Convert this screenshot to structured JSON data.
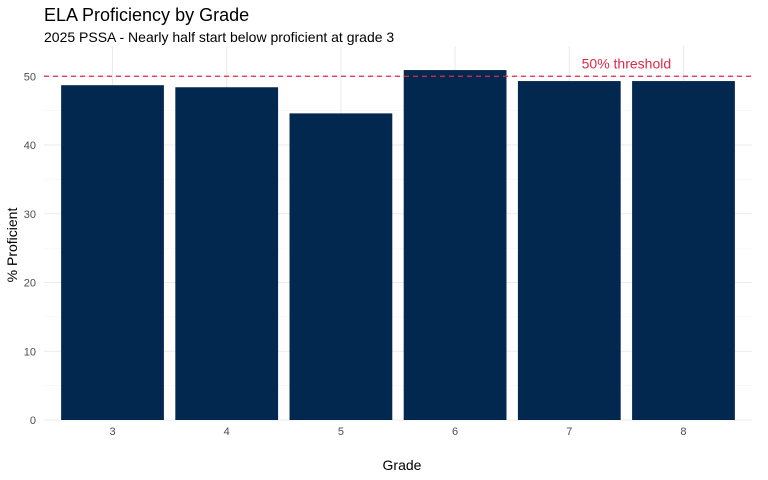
{
  "chart_data": {
    "type": "bar",
    "title": "ELA Proficiency by Grade",
    "subtitle": "2025 PSSA - Nearly half start below proficient at grade 3",
    "xlabel": "Grade",
    "ylabel": "% Proficient",
    "categories": [
      "3",
      "4",
      "5",
      "6",
      "7",
      "8"
    ],
    "values": [
      48.7,
      48.4,
      44.6,
      50.9,
      49.3,
      49.3
    ],
    "ylim": [
      0,
      54.4
    ],
    "yticks": [
      0,
      10,
      20,
      30,
      40,
      50
    ],
    "grid": true,
    "bar_color": "#02284f",
    "reference_line": {
      "value": 50,
      "label": "50% threshold",
      "color": "#e0284a",
      "style": "dashed"
    }
  }
}
